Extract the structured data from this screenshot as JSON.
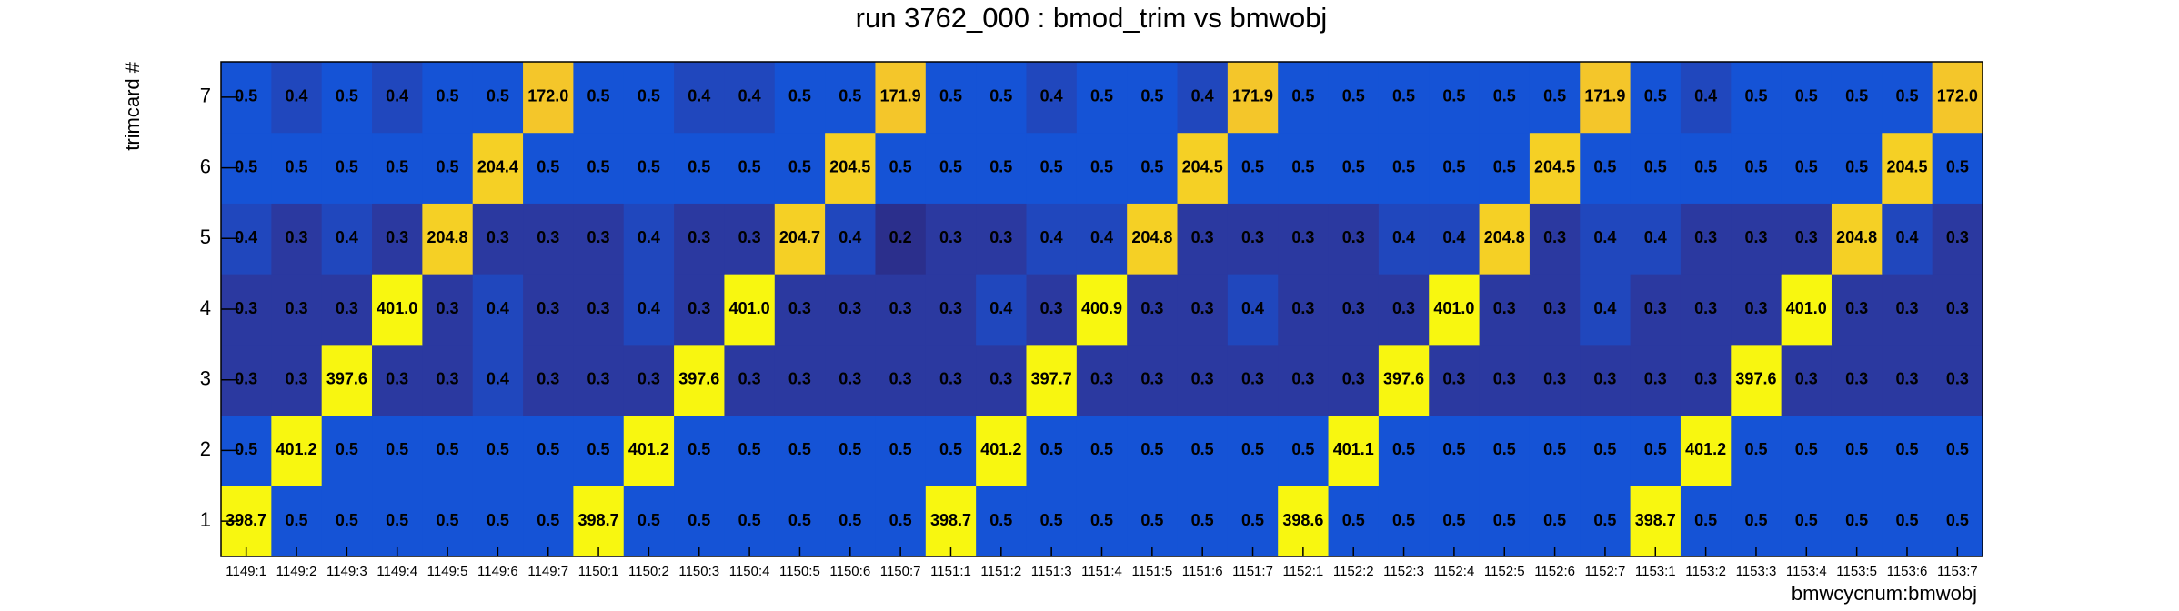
{
  "chart_data": {
    "type": "heatmap",
    "title": "run 3762_000 : bmod_trim vs bmwobj",
    "x_label": "bmwcycnum:bmwobj",
    "y_label": "trimcard #",
    "categories": [
      "1149:1",
      "1149:2",
      "1149:3",
      "1149:4",
      "1149:5",
      "1149:6",
      "1149:7",
      "1150:1",
      "1150:2",
      "1150:3",
      "1150:4",
      "1150:5",
      "1150:6",
      "1150:7",
      "1151:1",
      "1151:2",
      "1151:3",
      "1151:4",
      "1151:5",
      "1151:6",
      "1151:7",
      "1152:1",
      "1152:2",
      "1152:3",
      "1152:4",
      "1152:5",
      "1152:6",
      "1152:7",
      "1153:1",
      "1153:2",
      "1153:3",
      "1153:4",
      "1153:5",
      "1153:6",
      "1153:7"
    ],
    "y_categories": [
      1,
      2,
      3,
      4,
      5,
      6,
      7
    ],
    "values": [
      [
        398.7,
        0.5,
        0.5,
        0.5,
        0.5,
        0.5,
        0.5,
        398.7,
        0.5,
        0.5,
        0.5,
        0.5,
        0.5,
        0.5,
        398.7,
        0.5,
        0.5,
        0.5,
        0.5,
        0.5,
        0.5,
        398.6,
        0.5,
        0.5,
        0.5,
        0.5,
        0.5,
        0.5,
        398.7,
        0.5,
        0.5,
        0.5,
        0.5,
        0.5,
        0.5
      ],
      [
        0.5,
        401.2,
        0.5,
        0.5,
        0.5,
        0.5,
        0.5,
        0.5,
        401.2,
        0.5,
        0.5,
        0.5,
        0.5,
        0.5,
        0.5,
        401.2,
        0.5,
        0.5,
        0.5,
        0.5,
        0.5,
        0.5,
        401.1,
        0.5,
        0.5,
        0.5,
        0.5,
        0.5,
        0.5,
        401.2,
        0.5,
        0.5,
        0.5,
        0.5,
        0.5
      ],
      [
        0.3,
        0.3,
        397.6,
        0.3,
        0.3,
        0.4,
        0.3,
        0.3,
        0.3,
        397.6,
        0.3,
        0.3,
        0.3,
        0.3,
        0.3,
        0.3,
        397.7,
        0.3,
        0.3,
        0.3,
        0.3,
        0.3,
        0.3,
        397.6,
        0.3,
        0.3,
        0.3,
        0.3,
        0.3,
        0.3,
        397.6,
        0.3,
        0.3,
        0.3,
        0.3
      ],
      [
        0.3,
        0.3,
        0.3,
        401.0,
        0.3,
        0.4,
        0.3,
        0.3,
        0.4,
        0.3,
        401.0,
        0.3,
        0.3,
        0.3,
        0.3,
        0.4,
        0.3,
        400.9,
        0.3,
        0.3,
        0.4,
        0.3,
        0.3,
        0.3,
        401.0,
        0.3,
        0.3,
        0.4,
        0.3,
        0.3,
        0.3,
        401.0,
        0.3,
        0.3,
        0.3
      ],
      [
        0.4,
        0.3,
        0.4,
        0.3,
        204.8,
        0.3,
        0.3,
        0.3,
        0.4,
        0.3,
        0.3,
        204.7,
        0.4,
        0.2,
        0.3,
        0.3,
        0.4,
        0.4,
        204.8,
        0.3,
        0.3,
        0.3,
        0.3,
        0.4,
        0.4,
        204.8,
        0.3,
        0.4,
        0.4,
        0.3,
        0.3,
        0.3,
        204.8,
        0.4,
        0.3
      ],
      [
        0.5,
        0.5,
        0.5,
        0.5,
        0.5,
        204.4,
        0.5,
        0.5,
        0.5,
        0.5,
        0.5,
        0.5,
        204.5,
        0.5,
        0.5,
        0.5,
        0.5,
        0.5,
        0.5,
        204.5,
        0.5,
        0.5,
        0.5,
        0.5,
        0.5,
        0.5,
        204.5,
        0.5,
        0.5,
        0.5,
        0.5,
        0.5,
        0.5,
        204.5,
        0.5
      ],
      [
        0.5,
        0.4,
        0.5,
        0.4,
        0.5,
        0.5,
        172.0,
        0.5,
        0.5,
        0.4,
        0.4,
        0.5,
        0.5,
        171.9,
        0.5,
        0.5,
        0.4,
        0.5,
        0.5,
        0.4,
        171.9,
        0.5,
        0.5,
        0.5,
        0.5,
        0.5,
        0.5,
        171.9,
        0.5,
        0.4,
        0.5,
        0.5,
        0.5,
        0.5,
        172.0
      ]
    ],
    "value_labels": [
      [
        "398.7",
        "0.5",
        "0.5",
        "0.5",
        "0.5",
        "0.5",
        "0.5",
        "398.7",
        "0.5",
        "0.5",
        "0.5",
        "0.5",
        "0.5",
        "0.5",
        "398.7",
        "0.5",
        "0.5",
        "0.5",
        "0.5",
        "0.5",
        "0.5",
        "398.6",
        "0.5",
        "0.5",
        "0.5",
        "0.5",
        "0.5",
        "0.5",
        "398.7",
        "0.5",
        "0.5",
        "0.5",
        "0.5",
        "0.5",
        "0.5"
      ],
      [
        "0.5",
        "401.2",
        "0.5",
        "0.5",
        "0.5",
        "0.5",
        "0.5",
        "0.5",
        "401.2",
        "0.5",
        "0.5",
        "0.5",
        "0.5",
        "0.5",
        "0.5",
        "401.2",
        "0.5",
        "0.5",
        "0.5",
        "0.5",
        "0.5",
        "0.5",
        "401.1",
        "0.5",
        "0.5",
        "0.5",
        "0.5",
        "0.5",
        "0.5",
        "401.2",
        "0.5",
        "0.5",
        "0.5",
        "0.5",
        "0.5"
      ],
      [
        "0.3",
        "0.3",
        "397.6",
        "0.3",
        "0.3",
        "0.4",
        "0.3",
        "0.3",
        "0.3",
        "397.6",
        "0.3",
        "0.3",
        "0.3",
        "0.3",
        "0.3",
        "0.3",
        "397.7",
        "0.3",
        "0.3",
        "0.3",
        "0.3",
        "0.3",
        "0.3",
        "397.6",
        "0.3",
        "0.3",
        "0.3",
        "0.3",
        "0.3",
        "0.3",
        "397.6",
        "0.3",
        "0.3",
        "0.3",
        "0.3"
      ],
      [
        "0.3",
        "0.3",
        "0.3",
        "401.0",
        "0.3",
        "0.4",
        "0.3",
        "0.3",
        "0.4",
        "0.3",
        "401.0",
        "0.3",
        "0.3",
        "0.3",
        "0.3",
        "0.4",
        "0.3",
        "400.9",
        "0.3",
        "0.3",
        "0.4",
        "0.3",
        "0.3",
        "0.3",
        "401.0",
        "0.3",
        "0.3",
        "0.4",
        "0.3",
        "0.3",
        "0.3",
        "401.0",
        "0.3",
        "0.3",
        "0.3"
      ],
      [
        "0.4",
        "0.3",
        "0.4",
        "0.3",
        "204.8",
        "0.3",
        "0.3",
        "0.3",
        "0.4",
        "0.3",
        "0.3",
        "204.7",
        "0.4",
        "0.2",
        "0.3",
        "0.3",
        "0.4",
        "0.4",
        "204.8",
        "0.3",
        "0.3",
        "0.3",
        "0.3",
        "0.4",
        "0.4",
        "204.8",
        "0.3",
        "0.4",
        "0.4",
        "0.3",
        "0.3",
        "0.3",
        "204.8",
        "0.4",
        "0.3"
      ],
      [
        "0.5",
        "0.5",
        "0.5",
        "0.5",
        "0.5",
        "204.4",
        "0.5",
        "0.5",
        "0.5",
        "0.5",
        "0.5",
        "0.5",
        "204.5",
        "0.5",
        "0.5",
        "0.5",
        "0.5",
        "0.5",
        "0.5",
        "204.5",
        "0.5",
        "0.5",
        "0.5",
        "0.5",
        "0.5",
        "0.5",
        "204.5",
        "0.5",
        "0.5",
        "0.5",
        "0.5",
        "0.5",
        "0.5",
        "204.5",
        "0.5"
      ],
      [
        "0.5",
        "0.4",
        "0.5",
        "0.4",
        "0.5",
        "0.5",
        "172.0",
        "0.5",
        "0.5",
        "0.4",
        "0.4",
        "0.5",
        "0.5",
        "171.9",
        "0.5",
        "0.5",
        "0.4",
        "0.5",
        "0.5",
        "0.4",
        "171.9",
        "0.5",
        "0.5",
        "0.5",
        "0.5",
        "0.5",
        "0.5",
        "171.9",
        "0.5",
        "0.4",
        "0.5",
        "0.5",
        "0.5",
        "0.5",
        "172.0"
      ]
    ],
    "log_z": true,
    "colorscale": [
      [
        0,
        "#2b2f8c"
      ],
      [
        0.06,
        "#2b3aa3"
      ],
      [
        0.12,
        "#1553d6"
      ],
      [
        0.5,
        "#1aa9a8"
      ],
      [
        0.88,
        "#f4c22c"
      ],
      [
        1,
        "#f8f710"
      ]
    ]
  }
}
